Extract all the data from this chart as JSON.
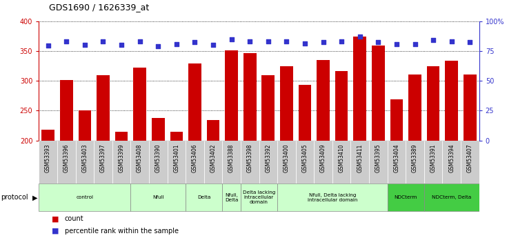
{
  "title": "GDS1690 / 1626339_at",
  "samples": [
    "GSM53393",
    "GSM53396",
    "GSM53403",
    "GSM53397",
    "GSM53399",
    "GSM53408",
    "GSM53390",
    "GSM53401",
    "GSM53406",
    "GSM53402",
    "GSM53388",
    "GSM53398",
    "GSM53392",
    "GSM53400",
    "GSM53405",
    "GSM53409",
    "GSM53410",
    "GSM53411",
    "GSM53395",
    "GSM53404",
    "GSM53389",
    "GSM53391",
    "GSM53394",
    "GSM53407"
  ],
  "counts": [
    218,
    301,
    250,
    310,
    215,
    322,
    238,
    215,
    329,
    234,
    351,
    347,
    310,
    325,
    293,
    335,
    317,
    375,
    360,
    269,
    311,
    325,
    334,
    311
  ],
  "perc_left_axis": [
    360,
    367,
    361,
    366,
    361,
    366,
    358,
    362,
    365,
    361,
    370,
    366,
    366,
    366,
    363,
    365,
    366,
    375,
    365,
    362,
    362,
    369,
    366,
    365
  ],
  "bar_color": "#cc0000",
  "dot_color": "#3333cc",
  "ylim_left": [
    200,
    400
  ],
  "ylim_right": [
    0,
    100
  ],
  "yticks_left": [
    200,
    250,
    300,
    350,
    400
  ],
  "yticks_right": [
    0,
    25,
    50,
    75,
    100
  ],
  "groups": [
    {
      "label": "control",
      "start": 0,
      "end": 4,
      "color": "#ccffcc"
    },
    {
      "label": "Nfull",
      "start": 5,
      "end": 7,
      "color": "#ccffcc"
    },
    {
      "label": "Delta",
      "start": 8,
      "end": 9,
      "color": "#ccffcc"
    },
    {
      "label": "Nfull,\nDelta",
      "start": 10,
      "end": 10,
      "color": "#ccffcc"
    },
    {
      "label": "Delta lacking\nintracellular\ndomain",
      "start": 11,
      "end": 12,
      "color": "#ccffcc"
    },
    {
      "label": "Nfull, Delta lacking\nintracellular domain",
      "start": 13,
      "end": 18,
      "color": "#ccffcc"
    },
    {
      "label": "NDCterm",
      "start": 19,
      "end": 20,
      "color": "#44cc44"
    },
    {
      "label": "NDCterm, Delta",
      "start": 21,
      "end": 23,
      "color": "#44cc44"
    }
  ],
  "axis_color": "#cc0000",
  "right_axis_color": "#3333cc",
  "tick_bg_color": "#cccccc"
}
